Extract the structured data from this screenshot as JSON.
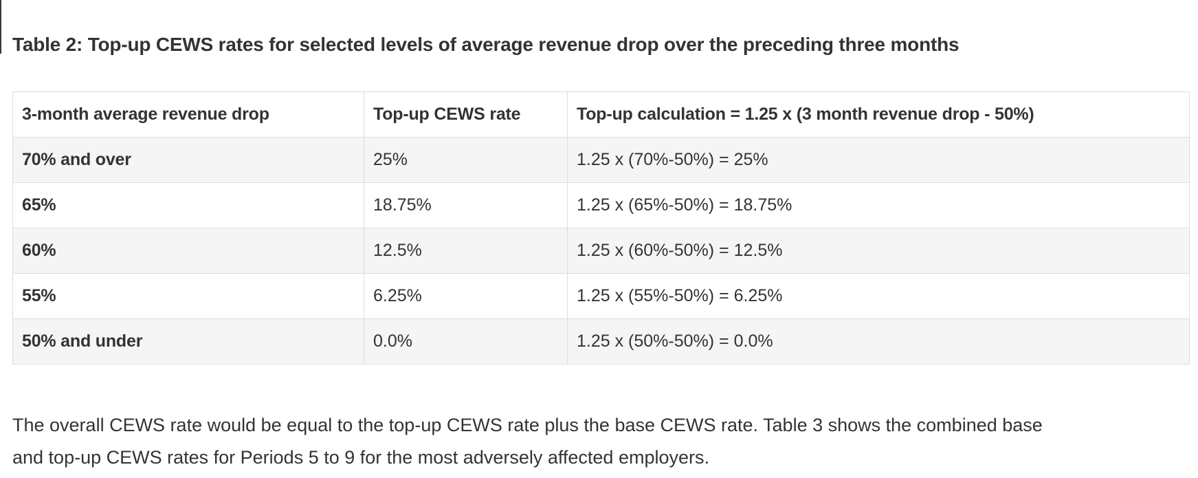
{
  "page": {
    "background_color": "#ffffff",
    "text_color": "#333333"
  },
  "heading": "Table 2: Top-up CEWS rates for selected levels of average revenue drop over the preceding three months",
  "table": {
    "stripe_color": "#f5f5f5",
    "border_color": "#dddddd",
    "columns": [
      "3-month average revenue drop",
      "Top-up CEWS rate",
      "Top-up calculation = 1.25 x (3 month revenue drop - 50%)"
    ],
    "rows": [
      {
        "drop": "70% and over",
        "rate": "25%",
        "calc": "1.25 x (70%-50%) = 25%"
      },
      {
        "drop": "65%",
        "rate": "18.75%",
        "calc": "1.25 x (65%-50%) = 18.75%"
      },
      {
        "drop": "60%",
        "rate": "12.5%",
        "calc": "1.25 x (60%-50%) = 12.5%"
      },
      {
        "drop": "55%",
        "rate": "6.25%",
        "calc": "1.25 x (55%-50%) = 6.25%"
      },
      {
        "drop": "50% and under",
        "rate": "0.0%",
        "calc": "1.25 x (50%-50%) = 0.0%"
      }
    ]
  },
  "paragraph": "The overall CEWS rate would be equal to the top-up CEWS rate plus the base CEWS rate. Table 3 shows the combined base and top-up CEWS rates for Periods 5 to 9 for the most adversely affected employers."
}
